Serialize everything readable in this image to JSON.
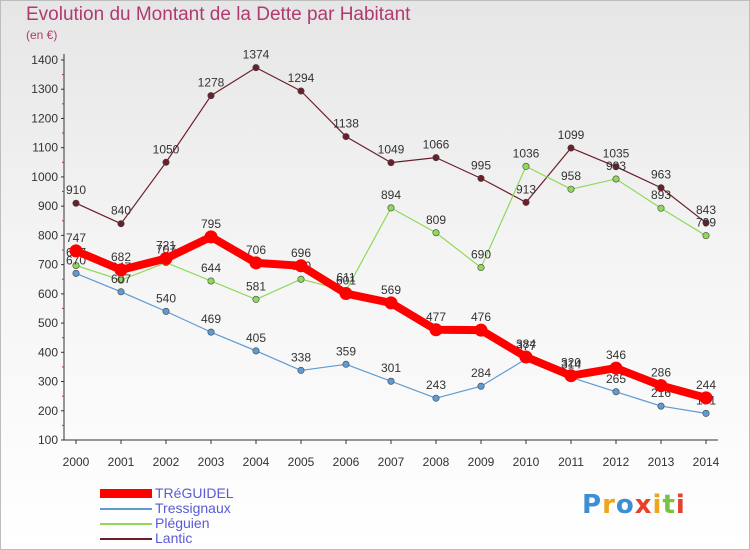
{
  "title": "Evolution du Montant de la Dette par Habitant",
  "subtitle": "(en €)",
  "brand": "Proxiti",
  "chart_data": {
    "type": "line",
    "title": "Evolution du Montant de la Dette par Habitant",
    "ylabel": "(en €)",
    "x": [
      2000,
      2001,
      2002,
      2003,
      2004,
      2005,
      2006,
      2007,
      2008,
      2009,
      2010,
      2011,
      2012,
      2013,
      2014
    ],
    "ylim": [
      100,
      1400
    ],
    "yticks": [
      100,
      200,
      300,
      400,
      500,
      600,
      700,
      800,
      900,
      1000,
      1100,
      1200,
      1300,
      1400
    ],
    "grid": false,
    "legend_position": "bottom-left",
    "series": [
      {
        "name": "Lantic",
        "color": "#6b1f2a",
        "values": [
          910,
          840,
          1050,
          1278,
          1374,
          1294,
          1138,
          1049,
          1066,
          995,
          913,
          1099,
          1035,
          963,
          843
        ]
      },
      {
        "name": "Pléguien",
        "color": "#8fd95a",
        "values": [
          697,
          647,
          707,
          644,
          581,
          650,
          611,
          894,
          809,
          690,
          1036,
          958,
          993,
          893,
          799
        ]
      },
      {
        "name": "Tressignaux",
        "color": "#5f9ad1",
        "values": [
          670,
          607,
          540,
          469,
          405,
          338,
          359,
          301,
          243,
          284,
          377,
          314,
          265,
          216,
          191
        ]
      },
      {
        "name": "TRéGUIDEL",
        "color": "#ff0000",
        "values": [
          747,
          682,
          721,
          795,
          706,
          696,
          601,
          569,
          477,
          476,
          384,
          320,
          346,
          286,
          244
        ]
      }
    ]
  }
}
